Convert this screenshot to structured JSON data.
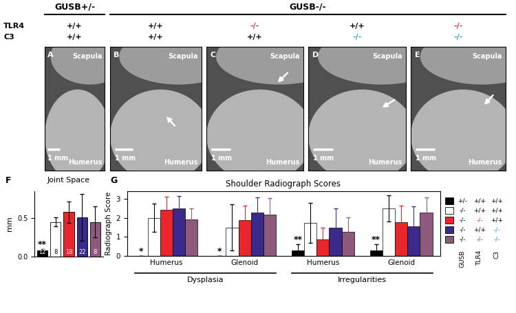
{
  "header": {
    "groups": [
      {
        "label": "GUSB+/-",
        "panels": [
          "A"
        ]
      },
      {
        "label": "GUSB-/-",
        "panels": [
          "B",
          "C",
          "D",
          "E"
        ]
      }
    ],
    "rows": [
      "TLR4",
      "C3"
    ]
  },
  "panels": [
    {
      "letter": "A",
      "top_label": "Scapula",
      "bottom_label": "Humerus",
      "scale_bar": "1 mm",
      "genotype": [
        "+/+",
        "+/+"
      ],
      "genotype_colors": [
        "#000000",
        "#000000"
      ]
    },
    {
      "letter": "B",
      "top_label": "Scapula",
      "bottom_label": "Humerus",
      "scale_bar": "1 mm",
      "genotype": [
        "+/+",
        "+/+"
      ],
      "genotype_colors": [
        "#000000",
        "#000000"
      ]
    },
    {
      "letter": "C",
      "top_label": "Scapula",
      "bottom_label": "Humerus",
      "scale_bar": "1 mm",
      "genotype": [
        "-/-",
        "+/+"
      ],
      "genotype_colors": [
        "#e02828",
        "#000000"
      ]
    },
    {
      "letter": "D",
      "top_label": "Scapula",
      "bottom_label": "Humerus",
      "scale_bar": "1 mm",
      "genotype": [
        "+/+",
        "-/-"
      ],
      "genotype_colors": [
        "#000000",
        "#2a9ad8"
      ]
    },
    {
      "letter": "E",
      "top_label": "Scapula",
      "bottom_label": "Humerus",
      "scale_bar": "1 mm",
      "genotype": [
        "-/-",
        "-/-"
      ],
      "genotype_colors": [
        "#e02828",
        "#2a9ad8"
      ]
    }
  ],
  "chart_data": [
    {
      "type": "bar",
      "panel": "F",
      "title": "Joint Space",
      "y_label": "mm",
      "categories": [
        null,
        null,
        null,
        null,
        null
      ],
      "values": [
        0.08,
        0.45,
        0.58,
        0.51,
        0.45
      ],
      "errors": [
        0.02,
        0.06,
        0.14,
        0.3,
        0.2
      ],
      "colors": [
        "#000000",
        "#ffffff",
        "#e8262b",
        "#3b2a8c",
        "#8e5a7c"
      ],
      "n_labels": [
        12,
        8,
        18,
        22,
        8
      ],
      "annotations": [
        {
          "text": "**",
          "index": 0
        }
      ],
      "ylim": [
        0,
        0.85
      ],
      "yticks": [
        {
          "value": 0,
          "label": "0.0"
        },
        0.5
      ],
      "tick_labels": "y"
    },
    {
      "type": "bar",
      "panel": "G",
      "title": "Shoulder Radiograph Scores",
      "y_label": "Radiograph Score",
      "categories": [
        "Humerus",
        "Glenoid",
        "Humerus",
        "Glenoid"
      ],
      "category_groups": [
        {
          "label": "Dysplasia",
          "categories": [
            0,
            1
          ]
        },
        {
          "label": "Irregularities",
          "categories": [
            2,
            3
          ]
        }
      ],
      "series": [
        {
          "color": "#000000",
          "values": [
            0.0,
            0.0,
            0.3,
            0.3
          ],
          "errors": [
            0.0,
            0.0,
            0.3,
            0.3
          ],
          "genotype": [
            "+/-",
            "+/+",
            "+/+"
          ],
          "genotype_colors": [
            "#000000",
            "#000000",
            "#000000"
          ]
        },
        {
          "color": "#ffffff",
          "values": [
            2.0,
            1.5,
            1.75,
            2.5
          ],
          "errors": [
            0.75,
            1.2,
            1.05,
            0.7
          ],
          "genotype": [
            "-/-",
            "+/+",
            "+/+"
          ],
          "genotype_colors": [
            "#000000",
            "#000000",
            "#000000"
          ]
        },
        {
          "color": "#e8262b",
          "values": [
            2.42,
            1.88,
            0.88,
            1.78
          ],
          "errors": [
            0.7,
            0.75,
            0.6,
            0.85
          ],
          "genotype": [
            "-/-",
            "-/-",
            "+/+"
          ],
          "genotype_colors": [
            "#000000",
            "#e02828",
            "#000000"
          ]
        },
        {
          "color": "#3b2a8c",
          "values": [
            2.48,
            2.27,
            1.5,
            1.55
          ],
          "errors": [
            0.65,
            0.82,
            1.0,
            1.05
          ],
          "genotype": [
            "-/-",
            "+/+",
            "-/-"
          ],
          "genotype_colors": [
            "#000000",
            "#000000",
            "#2a9ad8"
          ]
        },
        {
          "color": "#8e5a7c",
          "values": [
            1.9,
            2.18,
            1.28,
            2.28
          ],
          "errors": [
            0.58,
            0.85,
            0.75,
            0.8
          ],
          "genotype": [
            "-/-",
            "-/-",
            "-/-"
          ],
          "genotype_colors": [
            "#000000",
            "#e02828",
            "#2a9ad8"
          ]
        }
      ],
      "annotations": [
        {
          "text": "*",
          "category": 0,
          "series": 0
        },
        {
          "text": "*",
          "category": 1,
          "series": 0
        },
        {
          "text": "**",
          "category": 2,
          "series": 0
        },
        {
          "text": "**",
          "category": 3,
          "series": 0
        }
      ],
      "legend_columns": [
        "GUSB",
        "TLR4",
        "C3"
      ],
      "ylim": [
        0,
        3.4
      ],
      "yticks": [
        0,
        1,
        2,
        3
      ],
      "grid": false
    }
  ]
}
